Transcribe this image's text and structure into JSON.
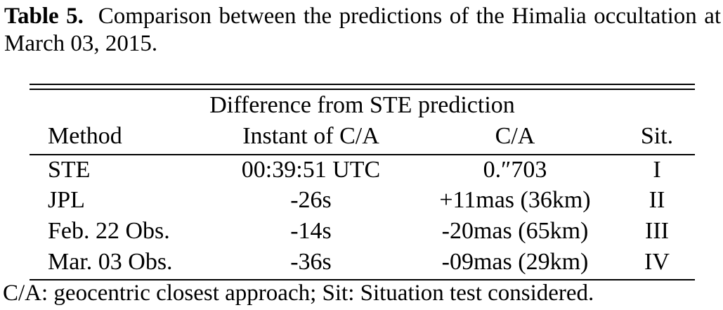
{
  "caption": {
    "label": "Table 5.",
    "text": "Comparison between the predictions of the Himalia occultation at March 03, 2015."
  },
  "table": {
    "spanning_header": "Difference from STE prediction",
    "columns": [
      "Method",
      "Instant of C/A",
      "C/A",
      "Sit."
    ],
    "rows": [
      [
        "STE",
        "00:39:51 UTC",
        "0.″703",
        "I"
      ],
      [
        "JPL",
        "-26s",
        "+11mas (36km)",
        "II"
      ],
      [
        "Feb. 22 Obs.",
        "-14s",
        "-20mas (65km)",
        "III"
      ],
      [
        "Mar. 03 Obs.",
        "-36s",
        "-09mas (29km)",
        "IV"
      ]
    ]
  },
  "footnote": "C/A: geocentric closest approach; Sit: Situation test considered."
}
